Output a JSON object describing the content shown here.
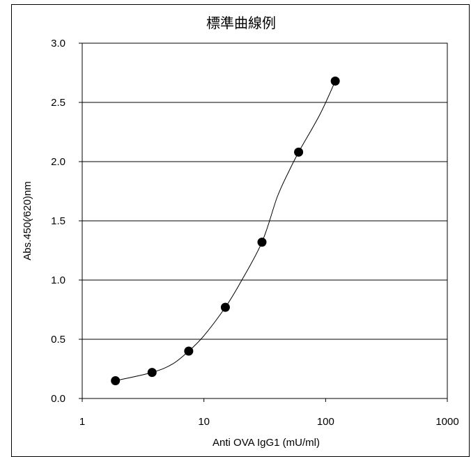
{
  "chart_data": {
    "type": "scatter",
    "title": "標準曲線例",
    "xlabel": "Anti OVA IgG1 (mU/ml)",
    "ylabel": "Abs.450(⁄620)nm",
    "x_scale": "log",
    "xlim": [
      1,
      1000
    ],
    "ylim": [
      0,
      3.0
    ],
    "x_ticks": [
      "1",
      "10",
      "100",
      "1000"
    ],
    "y_ticks": [
      "0.0",
      "0.5",
      "1.0",
      "1.5",
      "2.0",
      "2.5",
      "3.0"
    ],
    "grid": "horizontal",
    "legend": "none",
    "series": [
      {
        "x": [
          1.875,
          3.75,
          7.5,
          15,
          30,
          60,
          120
        ],
        "y": [
          0.15,
          0.22,
          0.4,
          0.77,
          1.32,
          2.08,
          2.68
        ]
      }
    ],
    "fitted_curve": {
      "x": [
        1.875,
        3.75,
        5.5,
        7.5,
        10,
        15,
        20,
        30,
        40,
        50,
        60,
        90,
        120
      ],
      "y": [
        0.15,
        0.22,
        0.29,
        0.4,
        0.53,
        0.77,
        0.98,
        1.32,
        1.7,
        1.92,
        2.08,
        2.4,
        2.68
      ]
    },
    "colors": {
      "marker": "#000000",
      "line": "#000000",
      "grid": "#000000"
    }
  }
}
